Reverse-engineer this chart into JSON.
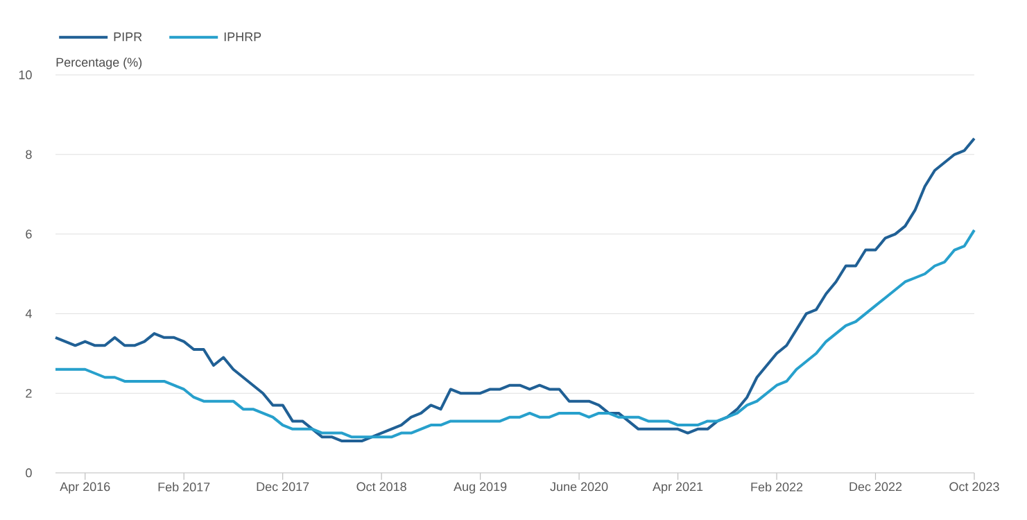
{
  "chart_data": {
    "type": "line",
    "ylabel": "Percentage (%)",
    "x": [
      "2016-01",
      "2016-02",
      "2016-03",
      "2016-04",
      "2016-05",
      "2016-06",
      "2016-07",
      "2016-08",
      "2016-09",
      "2016-10",
      "2016-11",
      "2016-12",
      "2017-01",
      "2017-02",
      "2017-03",
      "2017-04",
      "2017-05",
      "2017-06",
      "2017-07",
      "2017-08",
      "2017-09",
      "2017-10",
      "2017-11",
      "2017-12",
      "2018-01",
      "2018-02",
      "2018-03",
      "2018-04",
      "2018-05",
      "2018-06",
      "2018-07",
      "2018-08",
      "2018-09",
      "2018-10",
      "2018-11",
      "2018-12",
      "2019-01",
      "2019-02",
      "2019-03",
      "2019-04",
      "2019-05",
      "2019-06",
      "2019-07",
      "2019-08",
      "2019-09",
      "2019-10",
      "2019-11",
      "2019-12",
      "2020-01",
      "2020-02",
      "2020-03",
      "2020-04",
      "2020-05",
      "2020-06",
      "2020-07",
      "2020-08",
      "2020-09",
      "2020-10",
      "2020-11",
      "2020-12",
      "2021-01",
      "2021-02",
      "2021-03",
      "2021-04",
      "2021-05",
      "2021-06",
      "2021-07",
      "2021-08",
      "2021-09",
      "2021-10",
      "2021-11",
      "2021-12",
      "2022-01",
      "2022-02",
      "2022-03",
      "2022-04",
      "2022-05",
      "2022-06",
      "2022-07",
      "2022-08",
      "2022-09",
      "2022-10",
      "2022-11",
      "2022-12",
      "2023-01",
      "2023-02",
      "2023-03",
      "2023-04",
      "2023-05",
      "2023-06",
      "2023-07",
      "2023-08",
      "2023-09",
      "2023-10"
    ],
    "series": [
      {
        "name": "PIPR",
        "color": "#206095",
        "values": [
          3.4,
          3.3,
          3.2,
          3.3,
          3.2,
          3.2,
          3.4,
          3.2,
          3.2,
          3.3,
          3.5,
          3.4,
          3.4,
          3.3,
          3.1,
          3.1,
          2.7,
          2.9,
          2.6,
          2.4,
          2.2,
          2.0,
          1.7,
          1.7,
          1.3,
          1.3,
          1.1,
          0.9,
          0.9,
          0.8,
          0.8,
          0.8,
          0.9,
          1.0,
          1.1,
          1.2,
          1.4,
          1.5,
          1.7,
          1.6,
          2.1,
          2.0,
          2.0,
          2.0,
          2.1,
          2.1,
          2.2,
          2.2,
          2.1,
          2.2,
          2.1,
          2.1,
          1.8,
          1.8,
          1.8,
          1.7,
          1.5,
          1.5,
          1.3,
          1.1,
          1.1,
          1.1,
          1.1,
          1.1,
          1.0,
          1.1,
          1.1,
          1.3,
          1.4,
          1.6,
          1.9,
          2.4,
          2.7,
          3.0,
          3.2,
          3.6,
          4.0,
          4.1,
          4.5,
          4.8,
          5.2,
          5.2,
          5.6,
          5.6,
          5.9,
          6.0,
          6.2,
          6.6,
          7.2,
          7.6,
          7.8,
          8.0,
          8.1,
          8.4
        ]
      },
      {
        "name": "IPHRP",
        "color": "#27a0cc",
        "values": [
          2.6,
          2.6,
          2.6,
          2.6,
          2.5,
          2.4,
          2.4,
          2.3,
          2.3,
          2.3,
          2.3,
          2.3,
          2.2,
          2.1,
          1.9,
          1.8,
          1.8,
          1.8,
          1.8,
          1.6,
          1.6,
          1.5,
          1.4,
          1.2,
          1.1,
          1.1,
          1.1,
          1.0,
          1.0,
          1.0,
          0.9,
          0.9,
          0.9,
          0.9,
          0.9,
          1.0,
          1.0,
          1.1,
          1.2,
          1.2,
          1.3,
          1.3,
          1.3,
          1.3,
          1.3,
          1.3,
          1.4,
          1.4,
          1.5,
          1.4,
          1.4,
          1.5,
          1.5,
          1.5,
          1.4,
          1.5,
          1.5,
          1.4,
          1.4,
          1.4,
          1.3,
          1.3,
          1.3,
          1.2,
          1.2,
          1.2,
          1.3,
          1.3,
          1.4,
          1.5,
          1.7,
          1.8,
          2.0,
          2.2,
          2.3,
          2.6,
          2.8,
          3.0,
          3.3,
          3.5,
          3.7,
          3.8,
          4.0,
          4.2,
          4.4,
          4.6,
          4.8,
          4.9,
          5.0,
          5.2,
          5.3,
          5.6,
          5.7,
          6.1
        ]
      }
    ],
    "xlim": [
      "2016-01",
      "2023-10"
    ],
    "xticks": [
      {
        "value": "2016-04",
        "label": "Apr 2016"
      },
      {
        "value": "2017-02",
        "label": "Feb 2017"
      },
      {
        "value": "2017-12",
        "label": "Dec 2017"
      },
      {
        "value": "2018-10",
        "label": "Oct 2018"
      },
      {
        "value": "2019-08",
        "label": "Aug 2019"
      },
      {
        "value": "2020-06",
        "label": "June 2020"
      },
      {
        "value": "2021-04",
        "label": "Apr 2021"
      },
      {
        "value": "2022-02",
        "label": "Feb 2022"
      },
      {
        "value": "2022-12",
        "label": "Dec 2022"
      },
      {
        "value": "2023-10",
        "label": "Oct 2023"
      }
    ],
    "ylim": [
      0,
      10
    ],
    "yticks": [
      0,
      2,
      4,
      6,
      8,
      10
    ],
    "grid": "y",
    "legend": "top left"
  }
}
